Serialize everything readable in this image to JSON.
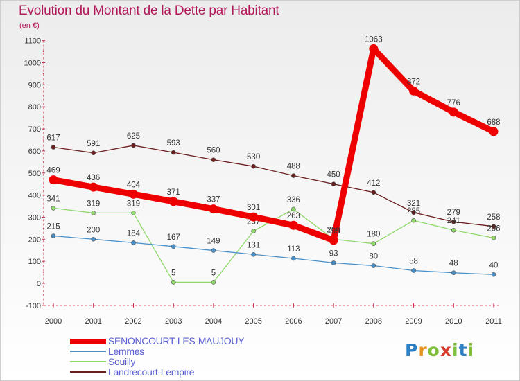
{
  "chart_data": {
    "type": "line",
    "title": "Evolution du Montant de la Dette par Habitant",
    "unit_label": "(en €)",
    "x": [
      "2000",
      "2001",
      "2002",
      "2003",
      "2004",
      "2005",
      "2006",
      "2007",
      "2008",
      "2009",
      "2010",
      "2011"
    ],
    "yticks": [
      "1100",
      "1000",
      "900",
      "800",
      "700",
      "600",
      "500",
      "400",
      "300",
      "200",
      "100",
      "0",
      "-100"
    ],
    "ylim": [
      -100,
      1100
    ],
    "grid": false,
    "legend_position": "bottom-left",
    "series": [
      {
        "name": "Landrecourt-Lempire",
        "color": "#6b1e1e",
        "width": "thin",
        "values": [
          617,
          591,
          625,
          593,
          560,
          530,
          488,
          450,
          412,
          321,
          279,
          258
        ]
      },
      {
        "name": "Souilly",
        "color": "#8fd86a",
        "width": "thin",
        "values": [
          341,
          319,
          319,
          5,
          5,
          237,
          336,
          200,
          180,
          285,
          241,
          206
        ]
      },
      {
        "name": "Lemmes",
        "color": "#4a90c8",
        "width": "thin",
        "values": [
          215,
          200,
          184,
          167,
          149,
          131,
          113,
          93,
          80,
          58,
          48,
          40
        ]
      },
      {
        "name": "SENONCOURT-LES-MAUJOUY",
        "color": "#ee0000",
        "width": "thick",
        "values": [
          469,
          436,
          404,
          371,
          337,
          301,
          263,
          195,
          1063,
          872,
          776,
          688
        ]
      }
    ]
  },
  "legend": [
    {
      "label": "SENONCOURT-LES-MAUJOUY",
      "color": "#ee0000",
      "weight": "thick"
    },
    {
      "label": "Lemmes",
      "color": "#4a90c8",
      "weight": "thin"
    },
    {
      "label": "Souilly",
      "color": "#8fd86a",
      "weight": "thin"
    },
    {
      "label": "Landrecourt-Lempire",
      "color": "#6b1e1e",
      "weight": "thin"
    }
  ],
  "brand": {
    "letters": [
      "P",
      "r",
      "o",
      "x",
      "i",
      "t",
      "i"
    ]
  }
}
